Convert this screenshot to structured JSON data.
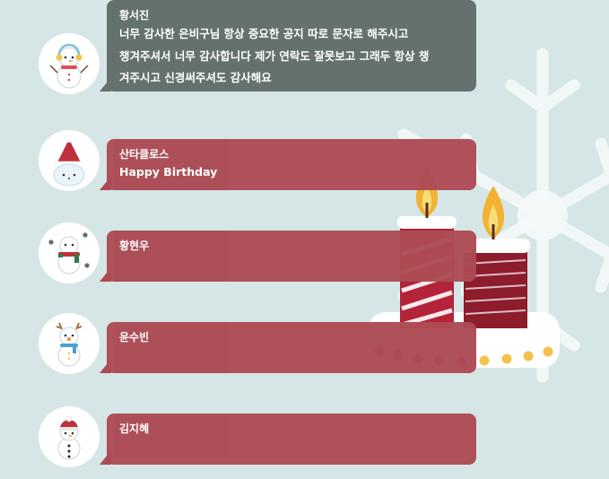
{
  "colors": {
    "background": "#d6e6e6",
    "bubble_gray": "#64716f",
    "bubble_red": "#ac4b55",
    "candle_red": "#b3233a",
    "flame": "#f2b233"
  },
  "messages": [
    {
      "name": "황서진",
      "text": "너무 감사한 은비구님 항상 중요한 공지 따로 문자로 해주시고\n챙겨주셔서 너무 감사합니다 제가 연락도 잘못보고 그래두 항상 챙\n겨주시고 신경써주셔도 감사해요",
      "bubble_color": "gray",
      "avatar_icon": "snowman-earmuffs-icon"
    },
    {
      "name": "산타클로스",
      "text": "Happy Birthday",
      "bubble_color": "red",
      "avatar_icon": "snowman-santa-hat-icon"
    },
    {
      "name": "황현우",
      "text": "",
      "bubble_color": "red",
      "avatar_icon": "snowman-scarf-snowflakes-icon"
    },
    {
      "name": "윤수빈",
      "text": "",
      "bubble_color": "red",
      "avatar_icon": "snowman-reindeer-icon"
    },
    {
      "name": "김지혜",
      "text": "",
      "bubble_color": "red",
      "avatar_icon": "snowman-red-beanie-icon"
    }
  ]
}
